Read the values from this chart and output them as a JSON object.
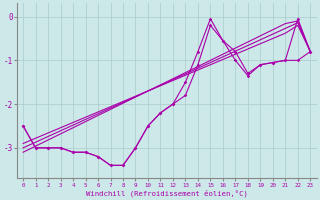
{
  "bg_color": "#cce8e8",
  "grid_color": "#aacccc",
  "line_color": "#aa00aa",
  "x": [
    0,
    1,
    2,
    3,
    4,
    5,
    6,
    7,
    8,
    9,
    10,
    11,
    12,
    13,
    14,
    15,
    16,
    17,
    18,
    19,
    20,
    21,
    22,
    23
  ],
  "line1": [
    -2.5,
    -3.0,
    -3.0,
    -3.0,
    -3.1,
    -3.1,
    -3.2,
    -3.4,
    -3.4,
    -3.0,
    -2.5,
    -2.2,
    -2.0,
    -1.8,
    -1.1,
    -0.2,
    -0.55,
    -0.8,
    -1.3,
    -1.1,
    -1.05,
    -1.0,
    -1.0,
    -0.8
  ],
  "line2": [
    -2.5,
    -3.0,
    -3.0,
    -3.0,
    -3.1,
    -3.1,
    -3.2,
    -3.4,
    -3.4,
    -3.0,
    -2.5,
    -2.2,
    -2.0,
    -1.5,
    -0.8,
    -0.05,
    -0.55,
    -1.0,
    -1.35,
    -1.1,
    -1.05,
    -1.0,
    -0.05,
    -0.8
  ],
  "reg1": [
    -3.0,
    -2.87,
    -2.74,
    -2.61,
    -2.48,
    -2.35,
    -2.22,
    -2.09,
    -1.96,
    -1.83,
    -1.7,
    -1.57,
    -1.44,
    -1.31,
    -1.18,
    -1.05,
    -0.92,
    -0.79,
    -0.66,
    -0.53,
    -0.4,
    -0.27,
    -0.14,
    -0.8
  ],
  "reg2": [
    -3.1,
    -2.96,
    -2.82,
    -2.68,
    -2.54,
    -2.4,
    -2.26,
    -2.12,
    -1.98,
    -1.84,
    -1.7,
    -1.56,
    -1.42,
    -1.28,
    -1.14,
    -1.0,
    -0.86,
    -0.72,
    -0.58,
    -0.44,
    -0.3,
    -0.16,
    -0.1,
    -0.8
  ],
  "reg3": [
    -2.9,
    -2.78,
    -2.66,
    -2.54,
    -2.42,
    -2.3,
    -2.18,
    -2.06,
    -1.94,
    -1.82,
    -1.7,
    -1.58,
    -1.46,
    -1.34,
    -1.22,
    -1.1,
    -0.98,
    -0.86,
    -0.74,
    -0.62,
    -0.5,
    -0.38,
    -0.2,
    -0.8
  ],
  "ylim": [
    -3.7,
    0.3
  ],
  "yticks": [
    0,
    -1,
    -2,
    -3
  ],
  "xlabel": "Windchill (Refroidissement éolien,°C)"
}
